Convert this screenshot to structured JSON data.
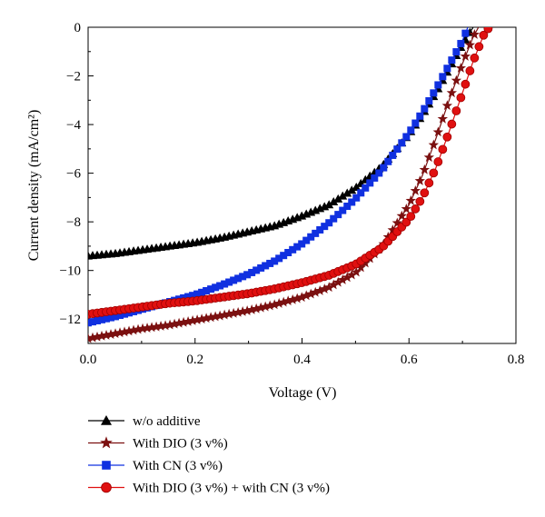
{
  "chart_data": {
    "type": "line",
    "xlabel": "Voltage (V)",
    "ylabel": "Current density (mA/cm²)",
    "xlim": [
      0.0,
      0.8
    ],
    "ylim": [
      -13,
      0
    ],
    "x_ticks": [
      "0.0",
      "0.2",
      "0.4",
      "0.6",
      "0.8"
    ],
    "y_ticks": [
      "0",
      "−2",
      "−4",
      "−6",
      "−8",
      "−10",
      "−12"
    ],
    "x_tick_values": [
      0.0,
      0.2,
      0.4,
      0.6,
      0.8
    ],
    "y_tick_values": [
      0,
      -2,
      -4,
      -6,
      -8,
      -10,
      -12
    ],
    "grid": false,
    "legend_position": "bottom-left, below plot",
    "series": [
      {
        "name": "w/o additive",
        "color": "#000000",
        "marker": "triangle",
        "x": [
          0.0,
          0.05,
          0.1,
          0.15,
          0.2,
          0.25,
          0.3,
          0.35,
          0.4,
          0.45,
          0.5,
          0.55,
          0.6,
          0.625,
          0.65,
          0.675,
          0.7,
          0.72
        ],
        "y": [
          -9.4,
          -9.3,
          -9.15,
          -9.0,
          -8.85,
          -8.65,
          -8.4,
          -8.15,
          -7.75,
          -7.3,
          -6.6,
          -5.7,
          -4.4,
          -3.6,
          -2.7,
          -1.7,
          -0.7,
          0.0
        ]
      },
      {
        "name": "With DIO (3 v%)",
        "color": "#7b1010",
        "marker": "star",
        "x": [
          0.0,
          0.05,
          0.1,
          0.15,
          0.2,
          0.25,
          0.3,
          0.35,
          0.4,
          0.45,
          0.5,
          0.55,
          0.6,
          0.625,
          0.65,
          0.675,
          0.7,
          0.72,
          0.73
        ],
        "y": [
          -12.8,
          -12.6,
          -12.4,
          -12.25,
          -12.05,
          -11.85,
          -11.65,
          -11.4,
          -11.1,
          -10.7,
          -10.1,
          -9.0,
          -7.3,
          -6.1,
          -4.6,
          -3.0,
          -1.5,
          -0.4,
          0.0
        ]
      },
      {
        "name": "With CN (3 v%)",
        "color": "#1030e0",
        "marker": "square",
        "x": [
          0.0,
          0.05,
          0.1,
          0.15,
          0.2,
          0.25,
          0.3,
          0.35,
          0.4,
          0.45,
          0.5,
          0.55,
          0.6,
          0.625,
          0.65,
          0.675,
          0.7,
          0.71
        ],
        "y": [
          -12.15,
          -11.9,
          -11.6,
          -11.3,
          -11.0,
          -10.6,
          -10.15,
          -9.6,
          -8.9,
          -8.05,
          -7.05,
          -5.85,
          -4.35,
          -3.5,
          -2.55,
          -1.55,
          -0.55,
          0.0
        ]
      },
      {
        "name": "With DIO (3 v%) + with CN (3 v%)",
        "color": "#e01010",
        "marker": "circle",
        "x": [
          0.0,
          0.05,
          0.1,
          0.15,
          0.2,
          0.25,
          0.3,
          0.35,
          0.4,
          0.45,
          0.5,
          0.55,
          0.6,
          0.625,
          0.65,
          0.675,
          0.7,
          0.72,
          0.74,
          0.75
        ],
        "y": [
          -11.8,
          -11.65,
          -11.5,
          -11.35,
          -11.25,
          -11.1,
          -10.95,
          -10.75,
          -10.5,
          -10.2,
          -9.75,
          -9.05,
          -7.9,
          -7.0,
          -5.8,
          -4.3,
          -2.7,
          -1.4,
          -0.3,
          0.0
        ]
      }
    ]
  }
}
